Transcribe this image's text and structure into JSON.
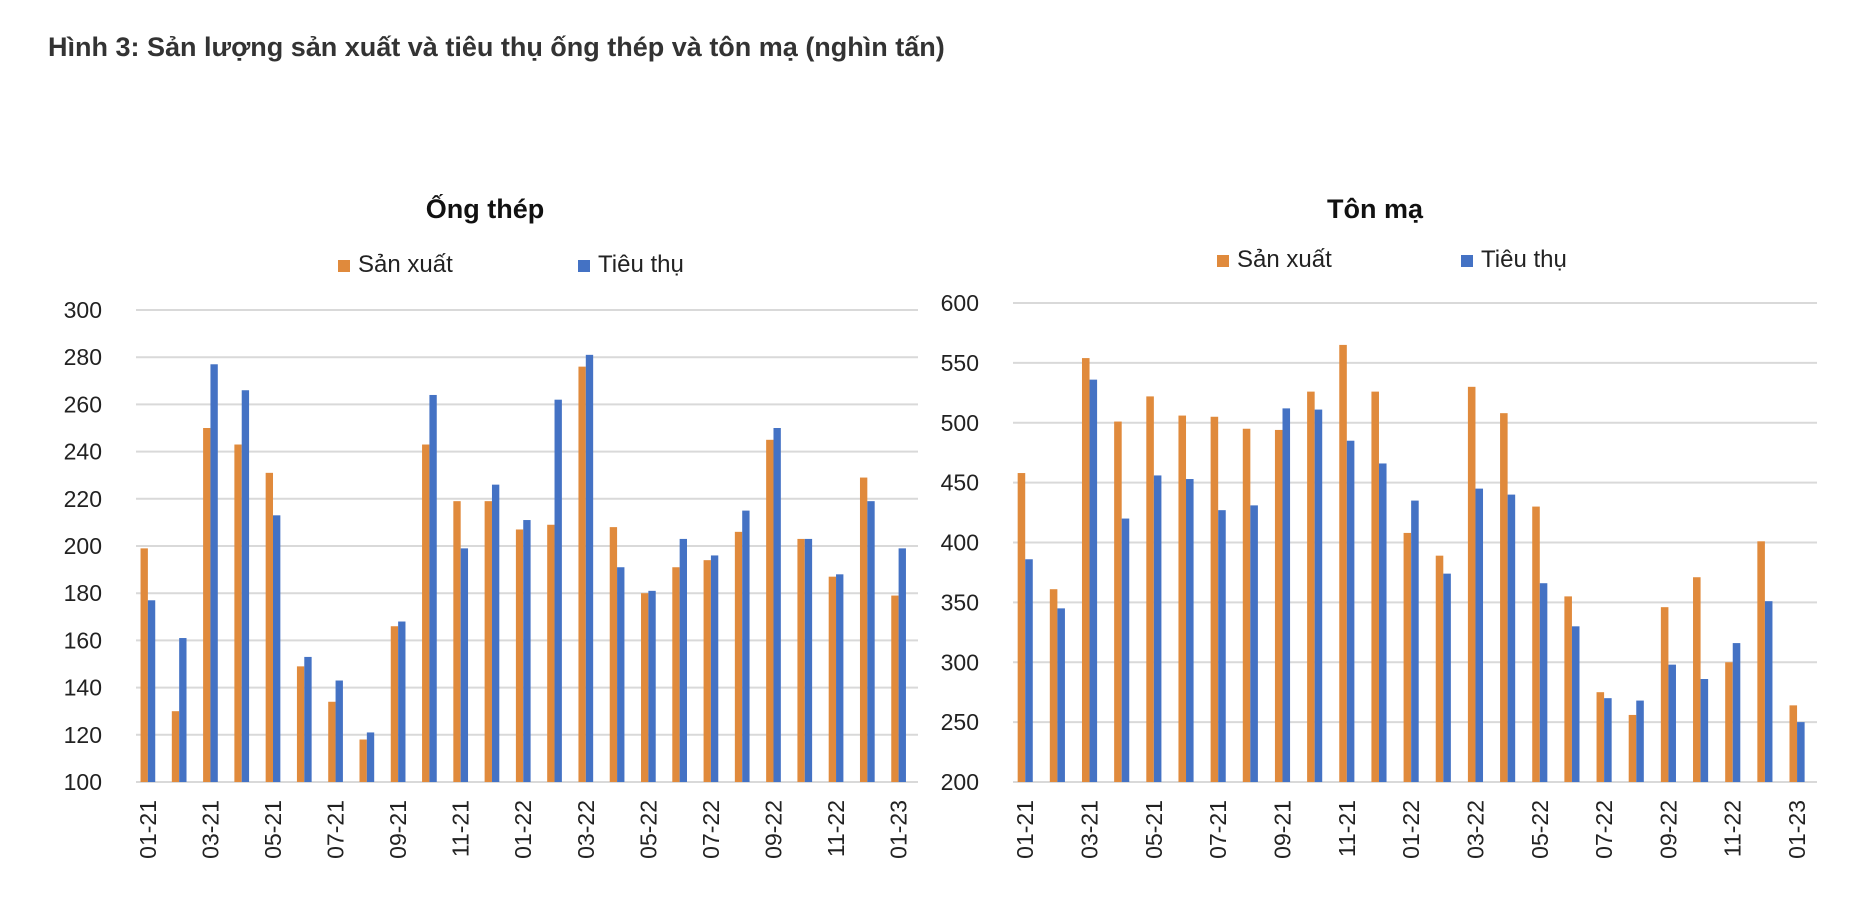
{
  "figure_title": "Hình 3: Sản lượng sản xuất và tiêu thụ ống thép và tôn mạ (nghìn tấn)",
  "colors": {
    "production": "#E08A3C",
    "consumption": "#4472C4",
    "grid": "#d9d9d9",
    "axis_text": "#222222"
  },
  "chart_data": [
    {
      "type": "bar",
      "title": "Ống thép",
      "xlabel": "",
      "ylabel": "",
      "legend_position": "top-center",
      "grid": true,
      "ylim": [
        100,
        300
      ],
      "yticks": [
        100,
        120,
        140,
        160,
        180,
        200,
        220,
        240,
        260,
        280,
        300
      ],
      "categories": [
        "01-21",
        "02-21",
        "03-21",
        "04-21",
        "05-21",
        "06-21",
        "07-21",
        "08-21",
        "09-21",
        "10-21",
        "11-21",
        "12-21",
        "01-22",
        "02-22",
        "03-22",
        "04-22",
        "05-22",
        "06-22",
        "07-22",
        "08-22",
        "09-22",
        "10-22",
        "11-22",
        "12-22",
        "01-23"
      ],
      "tick_labels": [
        "01-21",
        "03-21",
        "05-21",
        "07-21",
        "09-21",
        "11-21",
        "01-22",
        "03-22",
        "05-22",
        "07-22",
        "09-22",
        "11-22",
        "01-23"
      ],
      "series": [
        {
          "name": "Sản xuất",
          "values": [
            199,
            130,
            250,
            243,
            231,
            149,
            134,
            118,
            166,
            243,
            219,
            219,
            207,
            209,
            276,
            208,
            180,
            191,
            194,
            206,
            245,
            203,
            187,
            229,
            179
          ]
        },
        {
          "name": "Tiêu thụ",
          "values": [
            177,
            161,
            277,
            266,
            213,
            153,
            143,
            121,
            168,
            264,
            199,
            226,
            211,
            262,
            281,
            191,
            181,
            203,
            196,
            215,
            250,
            203,
            188,
            219,
            199
          ]
        }
      ]
    },
    {
      "type": "bar",
      "title": "Tôn mạ",
      "xlabel": "",
      "ylabel": "",
      "legend_position": "top-center",
      "grid": true,
      "ylim": [
        200,
        600
      ],
      "yticks": [
        200,
        250,
        300,
        350,
        400,
        450,
        500,
        550,
        600
      ],
      "categories": [
        "01-21",
        "02-21",
        "03-21",
        "04-21",
        "05-21",
        "06-21",
        "07-21",
        "08-21",
        "09-21",
        "10-21",
        "11-21",
        "12-21",
        "01-22",
        "02-22",
        "03-22",
        "04-22",
        "05-22",
        "06-22",
        "07-22",
        "08-22",
        "09-22",
        "10-22",
        "11-22",
        "12-22",
        "01-23"
      ],
      "tick_labels": [
        "01-21",
        "03-21",
        "05-21",
        "07-21",
        "09-21",
        "11-21",
        "01-22",
        "03-22",
        "05-22",
        "07-22",
        "09-22",
        "11-22",
        "01-23"
      ],
      "series": [
        {
          "name": "Sản xuất",
          "values": [
            458,
            361,
            554,
            501,
            522,
            506,
            505,
            495,
            494,
            526,
            565,
            526,
            408,
            389,
            530,
            508,
            430,
            355,
            275,
            256,
            346,
            371,
            300,
            401,
            264
          ]
        },
        {
          "name": "Tiêu thụ",
          "values": [
            386,
            345,
            536,
            420,
            456,
            453,
            427,
            431,
            512,
            511,
            485,
            466,
            435,
            374,
            445,
            440,
            366,
            330,
            270,
            268,
            298,
            286,
            316,
            351,
            250
          ]
        }
      ]
    }
  ]
}
